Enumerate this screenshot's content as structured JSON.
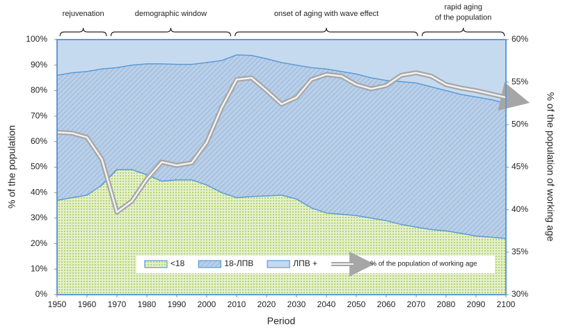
{
  "chart_data": {
    "type": "stacked-area",
    "x_label": "Period",
    "y_label": "% of the population",
    "y2_label": "% of the population of working age",
    "x": [
      1950,
      1955,
      1960,
      1965,
      1970,
      1975,
      1980,
      1985,
      1990,
      1995,
      2000,
      2005,
      2010,
      2015,
      2020,
      2025,
      2030,
      2035,
      2040,
      2045,
      2050,
      2055,
      2060,
      2065,
      2070,
      2075,
      2080,
      2085,
      2090,
      2095,
      2100
    ],
    "xlim": [
      1950,
      2100
    ],
    "xticks": [
      1950,
      1960,
      1970,
      1980,
      1990,
      2000,
      2010,
      2020,
      2030,
      2040,
      2050,
      2060,
      2070,
      2080,
      2090,
      2100
    ],
    "ylim": [
      0,
      100
    ],
    "yticks": [
      {
        "value": 0,
        "label": "0%"
      },
      {
        "value": 10,
        "label": "10%"
      },
      {
        "value": 20,
        "label": "20%"
      },
      {
        "value": 30,
        "label": "30%"
      },
      {
        "value": 40,
        "label": "40%"
      },
      {
        "value": 50,
        "label": "50%"
      },
      {
        "value": 60,
        "label": "60%"
      },
      {
        "value": 70,
        "label": "70%"
      },
      {
        "value": 80,
        "label": "80%"
      },
      {
        "value": 90,
        "label": "90%"
      },
      {
        "value": 100,
        "label": "100%"
      }
    ],
    "y2lim": [
      30,
      60
    ],
    "y2ticks": [
      {
        "value": 30,
        "label": "30%"
      },
      {
        "value": 35,
        "label": "35%"
      },
      {
        "value": 40,
        "label": "40%"
      },
      {
        "value": 45,
        "label": "45%"
      },
      {
        "value": 50,
        "label": "50%"
      },
      {
        "value": 55,
        "label": "55%"
      },
      {
        "value": 60,
        "label": "60%"
      }
    ],
    "series": [
      {
        "name": "<18",
        "color": "#d5e8b0",
        "pattern": "dots",
        "values": [
          37,
          38,
          39,
          43,
          49,
          49,
          47,
          44.5,
          45,
          45,
          43,
          40,
          38,
          38.5,
          38.7,
          39,
          37.5,
          34,
          32,
          31.5,
          31,
          30,
          29,
          27.5,
          26.5,
          25.5,
          25,
          24,
          23,
          22.5,
          22
        ]
      },
      {
        "name": "18-ЛПВ",
        "color": "#b4cbe6",
        "pattern": "hatch",
        "values": [
          49,
          49,
          48.5,
          45.5,
          40,
          41,
          43.5,
          46,
          45.3,
          45.3,
          48,
          51.8,
          56,
          55.3,
          53.8,
          52,
          52.5,
          55,
          56.5,
          56,
          55.5,
          55,
          55,
          56,
          56.5,
          56,
          55,
          54.5,
          54.5,
          54,
          53
        ]
      },
      {
        "name": "ЛПВ +",
        "color": "#c6daef",
        "pattern": "solid",
        "values": [
          14,
          13,
          12.5,
          11.5,
          11,
          10,
          9.5,
          9.5,
          9.7,
          9.7,
          9,
          8.2,
          6,
          6.2,
          7.5,
          9,
          10,
          11,
          11.5,
          12.5,
          13.5,
          15,
          16,
          16.5,
          17,
          18.5,
          20,
          21.5,
          22.5,
          23.5,
          25
        ]
      },
      {
        "name": "% of the population of working age",
        "color": "#a6a6a6",
        "axis": "y2",
        "kind": "line",
        "values": [
          49.1,
          49,
          48.5,
          45.9,
          39.7,
          41,
          43.6,
          45.6,
          45.2,
          45.5,
          47.9,
          52,
          55.3,
          55.5,
          54,
          52.4,
          53.2,
          55.3,
          55.9,
          55.7,
          54.7,
          54.2,
          54.6,
          55.8,
          56.1,
          55.7,
          54.7,
          54.3,
          54,
          53.6,
          53.2
        ]
      }
    ],
    "border_color": "#5b9bd5",
    "periods": [
      {
        "label": [
          "rejuvenation"
        ],
        "start": 1951,
        "end": 1966.5
      },
      {
        "label": [
          "demographic window"
        ],
        "start": 1968,
        "end": 2008
      },
      {
        "label": [
          "onset of aging with wave effect"
        ],
        "start": 2009.5,
        "end": 2070.5
      },
      {
        "label": [
          "rapid aging",
          "of the population"
        ],
        "start": 2072,
        "end": 2099.5
      }
    ]
  }
}
